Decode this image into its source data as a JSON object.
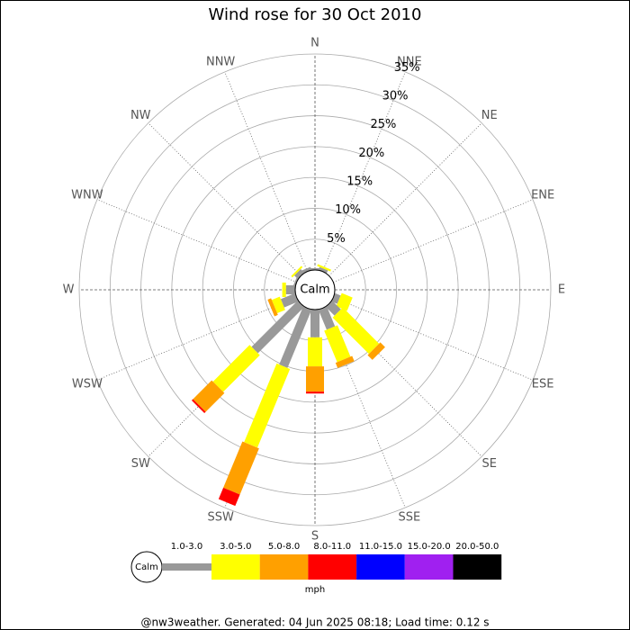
{
  "chart_data": {
    "type": "windrose",
    "title": "Wind rose for 30 Oct 2010",
    "categories": [
      "N",
      "NNE",
      "NE",
      "ENE",
      "E",
      "ESE",
      "SE",
      "SSE",
      "S",
      "SSW",
      "SW",
      "WSW",
      "W",
      "WNW",
      "NW",
      "NNW"
    ],
    "center_label": "Calm",
    "rlim": [
      0,
      35
    ],
    "rticks": [
      {
        "value": 5,
        "label": "5%"
      },
      {
        "value": 10,
        "label": "10%"
      },
      {
        "value": 15,
        "label": "15%"
      },
      {
        "value": 20,
        "label": "20%"
      },
      {
        "value": 25,
        "label": "25%"
      },
      {
        "value": 30,
        "label": "30%"
      },
      {
        "value": 35,
        "label": "35%"
      }
    ],
    "series": [
      {
        "name": "1.0-3.0",
        "color": "#999999",
        "values": [
          0.3,
          0.5,
          0,
          0,
          0,
          1.0,
          2.0,
          3.5,
          4.5,
          10.2,
          10.6,
          2.5,
          1.5,
          0.3,
          0.8,
          0.5
        ]
      },
      {
        "name": "3.0-5.0",
        "color": "#ffff00",
        "values": [
          0,
          0.3,
          0,
          0,
          0,
          1.9,
          8.3,
          5.5,
          4.7,
          13.8,
          8.4,
          1.4,
          0.6,
          0,
          0.3,
          0
        ]
      },
      {
        "name": "5.0-8.0",
        "color": "#ffa000",
        "values": [
          0,
          0,
          0,
          0,
          0,
          0,
          1.1,
          0.9,
          4.1,
          8.1,
          4.3,
          0.6,
          0,
          0,
          0,
          0
        ]
      },
      {
        "name": "8.0-11.0",
        "color": "#ff0000",
        "values": [
          0,
          0,
          0,
          0,
          0,
          0,
          0,
          0,
          0.3,
          2.0,
          0.3,
          0,
          0,
          0,
          0,
          0
        ]
      },
      {
        "name": "11.0-15.0",
        "color": "#0000ff",
        "values": [
          0,
          0,
          0,
          0,
          0,
          0,
          0,
          0,
          0,
          0,
          0,
          0,
          0,
          0,
          0,
          0
        ]
      },
      {
        "name": "15.0-20.0",
        "color": "#a020f0",
        "values": [
          0,
          0,
          0,
          0,
          0,
          0,
          0,
          0,
          0,
          0,
          0,
          0,
          0,
          0,
          0,
          0
        ]
      },
      {
        "name": "20.0-50.0",
        "color": "#000000",
        "values": [
          0,
          0,
          0,
          0,
          0,
          0,
          0,
          0,
          0,
          0,
          0,
          0,
          0,
          0,
          0,
          0
        ]
      }
    ],
    "legend_calm": "Calm",
    "legend_unit": "mph",
    "footer": "@nw3weather. Generated: 04 Jun 2025 08:18; Load time: 0.12 s"
  }
}
